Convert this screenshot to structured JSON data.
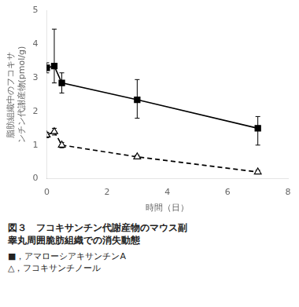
{
  "chart_data": {
    "type": "line",
    "title": [
      "図３　フコキサンチン代謝産物のマウス副",
      "睾丸周囲脆肪組織での消失動態"
    ],
    "x_label": "時間（日）",
    "y_label": [
      "脂肪組織中のフコキサ",
      "ンチン代謝産物(pmol/g)"
    ],
    "series": [
      {
        "name": "■，アマローシアキサンチンA",
        "color": "#000000",
        "marker": "square",
        "line_style": "solid",
        "x": [
          0,
          0.25,
          0.5,
          3,
          7
        ],
        "values": [
          3.3,
          3.35,
          2.85,
          2.35,
          1.5
        ],
        "error_low": [
          0.15,
          0.5,
          0.3,
          0.55,
          0.5
        ],
        "error_high": [
          0.15,
          1.1,
          0.3,
          0.6,
          0.35
        ]
      },
      {
        "name": "△，フコキサンチノール",
        "color": "#000000",
        "marker": "triangle-open",
        "line_style": "dashed",
        "x": [
          0,
          0.25,
          0.5,
          3,
          7
        ],
        "values": [
          1.3,
          1.4,
          1.0,
          0.65,
          0.2
        ],
        "error_low": [
          0.08,
          0.1,
          0.08,
          0.05,
          0.05
        ],
        "error_high": [
          0.08,
          0.1,
          0.08,
          0.05,
          0.05
        ]
      }
    ],
    "xlim": [
      0,
      8
    ],
    "ylim": [
      0,
      5
    ],
    "xticks": [
      0,
      2,
      4,
      6,
      8
    ],
    "yticks": [
      0,
      1,
      2,
      3,
      4,
      5
    ],
    "grid": false
  }
}
